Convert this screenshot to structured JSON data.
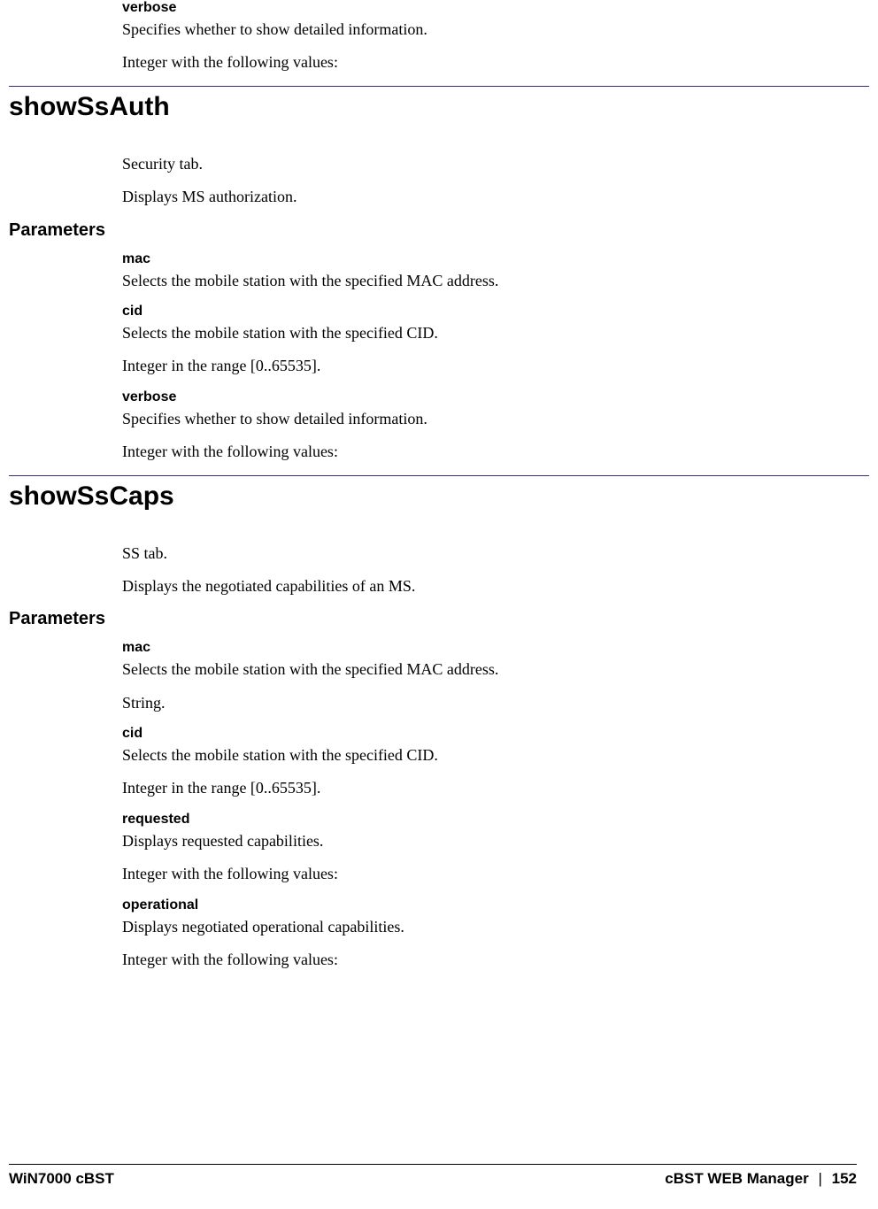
{
  "intro": {
    "verbose_name": "verbose",
    "verbose_desc": "Specifies whether to show detailed information.",
    "verbose_note": "Integer with the following values:"
  },
  "section1": {
    "title": "showSsAuth",
    "desc1": "Security tab.",
    "desc2": "Displays MS authorization.",
    "params_heading": "Parameters",
    "mac_name": "mac",
    "mac_desc": "Selects the mobile station with the specified MAC address.",
    "cid_name": "cid",
    "cid_desc": "Selects the mobile station with the specified CID.",
    "cid_note": "Integer in the range [0..65535].",
    "verbose_name": "verbose",
    "verbose_desc": "Specifies whether to show detailed information.",
    "verbose_note": "Integer with the following values:"
  },
  "section2": {
    "title": "showSsCaps",
    "desc1": "SS tab.",
    "desc2": "Displays the negotiated capabilities of an MS.",
    "params_heading": "Parameters",
    "mac_name": "mac",
    "mac_desc": "Selects the mobile station with the specified MAC address.",
    "mac_note": "String.",
    "cid_name": "cid",
    "cid_desc": "Selects the mobile station with the specified CID.",
    "cid_note": "Integer in the range [0..65535].",
    "requested_name": "requested",
    "requested_desc": "Displays requested capabilities.",
    "requested_note": "Integer with the following values:",
    "operational_name": "operational",
    "operational_desc": "Displays negotiated operational capabilities.",
    "operational_note": "Integer with the following values:"
  },
  "footer": {
    "left": "WiN7000 cBST",
    "right_title": "cBST WEB Manager",
    "sep": "|",
    "page": "152"
  },
  "rule_color": "#3a2a7a"
}
